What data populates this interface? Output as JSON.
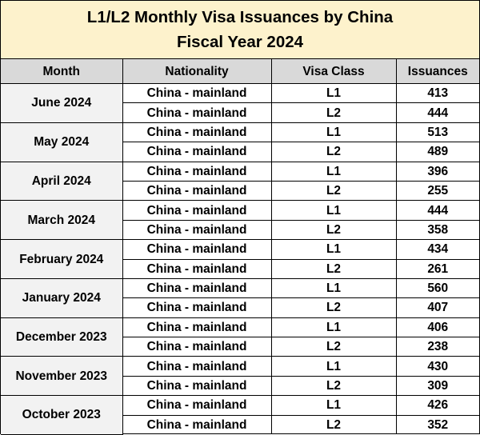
{
  "chart_data": {
    "type": "table",
    "title": "L1/L2 Monthly Visa Issuances by China",
    "subtitle": "Fiscal Year 2024",
    "columns": [
      "Month",
      "Nationality",
      "Visa Class",
      "Issuances"
    ],
    "rows": [
      {
        "month": "June 2024",
        "entries": [
          {
            "nationality": "China - mainland",
            "visa_class": "L1",
            "issuances": "413"
          },
          {
            "nationality": "China - mainland",
            "visa_class": "L2",
            "issuances": "444"
          }
        ]
      },
      {
        "month": "May 2024",
        "entries": [
          {
            "nationality": "China - mainland",
            "visa_class": "L1",
            "issuances": "513"
          },
          {
            "nationality": "China - mainland",
            "visa_class": "L2",
            "issuances": "489"
          }
        ]
      },
      {
        "month": "April 2024",
        "entries": [
          {
            "nationality": "China - mainland",
            "visa_class": "L1",
            "issuances": "396"
          },
          {
            "nationality": "China - mainland",
            "visa_class": "L2",
            "issuances": "255"
          }
        ]
      },
      {
        "month": "March 2024",
        "entries": [
          {
            "nationality": "China - mainland",
            "visa_class": "L1",
            "issuances": "444"
          },
          {
            "nationality": "China - mainland",
            "visa_class": "L2",
            "issuances": "358"
          }
        ]
      },
      {
        "month": "February 2024",
        "entries": [
          {
            "nationality": "China - mainland",
            "visa_class": "L1",
            "issuances": "434"
          },
          {
            "nationality": "China - mainland",
            "visa_class": "L2",
            "issuances": "261"
          }
        ]
      },
      {
        "month": "January 2024",
        "entries": [
          {
            "nationality": "China - mainland",
            "visa_class": "L1",
            "issuances": "560"
          },
          {
            "nationality": "China - mainland",
            "visa_class": "L2",
            "issuances": "407"
          }
        ]
      },
      {
        "month": "December 2023",
        "entries": [
          {
            "nationality": "China - mainland",
            "visa_class": "L1",
            "issuances": "406"
          },
          {
            "nationality": "China - mainland",
            "visa_class": "L2",
            "issuances": "238"
          }
        ]
      },
      {
        "month": "November 2023",
        "entries": [
          {
            "nationality": "China - mainland",
            "visa_class": "L1",
            "issuances": "430"
          },
          {
            "nationality": "China - mainland",
            "visa_class": "L2",
            "issuances": "309"
          }
        ]
      },
      {
        "month": "October 2023",
        "entries": [
          {
            "nationality": "China - mainland",
            "visa_class": "L1",
            "issuances": "426"
          },
          {
            "nationality": "China - mainland",
            "visa_class": "L2",
            "issuances": "352"
          }
        ]
      }
    ]
  }
}
